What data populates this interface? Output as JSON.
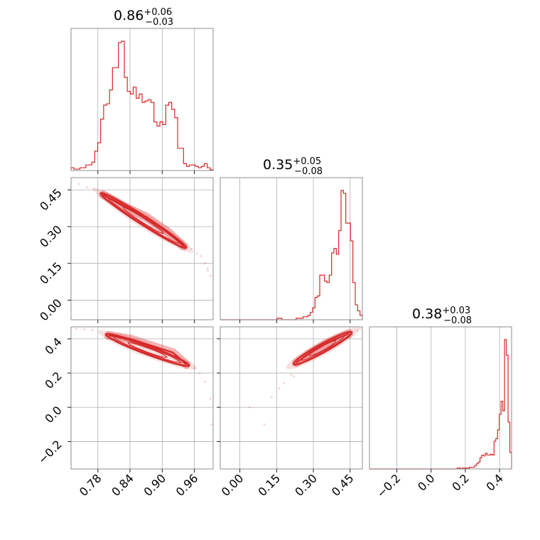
{
  "colors": {
    "series": "#d62728",
    "grid": "#b0b0b0",
    "frame": "#8c8c8c"
  },
  "chart_data": {
    "type": "corner",
    "parameters": [
      {
        "key": "p0",
        "median": "0.86",
        "plus": "+0.06",
        "minus": "−0.03",
        "range": [
          0.73,
          0.995
        ],
        "ticks": [
          0.78,
          0.84,
          0.9,
          0.96
        ],
        "tick_labels": [
          "0.78",
          "0.84",
          "0.90",
          "0.96"
        ]
      },
      {
        "key": "p1",
        "median": "0.35",
        "plus": "+0.05",
        "minus": "−0.08",
        "range": [
          -0.08,
          0.5
        ],
        "ticks": [
          0.0,
          0.15,
          0.3,
          0.45
        ],
        "tick_labels": [
          "0.00",
          "0.15",
          "0.30",
          "0.45"
        ]
      },
      {
        "key": "p2",
        "median": "0.38",
        "plus": "+0.03",
        "minus": "−0.08",
        "range": [
          -0.36,
          0.47
        ],
        "ticks": [
          -0.2,
          0.0,
          0.2,
          0.4
        ],
        "tick_labels": [
          "−0.2",
          "0.0",
          "0.2",
          "0.4"
        ]
      }
    ],
    "histograms": [
      {
        "param": 0,
        "edges_range": [
          0.73,
          0.995
        ],
        "counts": [
          2,
          1,
          1,
          2,
          2,
          4,
          4,
          6,
          14,
          20,
          37,
          47,
          48,
          58,
          74,
          74,
          92,
          93,
          67,
          57,
          55,
          60,
          52,
          55,
          49,
          50,
          51,
          49,
          35,
          32,
          35,
          33,
          47,
          49,
          44,
          38,
          16,
          16,
          5,
          3,
          4,
          4,
          3,
          2,
          3,
          5,
          2,
          0.5
        ]
      },
      {
        "param": 1,
        "edges_range": [
          -0.08,
          0.5
        ],
        "counts": [
          0,
          0,
          0,
          0,
          0,
          0,
          0,
          0,
          0,
          0,
          0,
          0,
          0,
          0,
          0,
          0,
          0,
          0,
          0,
          0,
          0,
          0,
          0,
          0,
          1,
          1,
          0,
          0,
          0,
          0,
          0,
          0,
          1,
          1,
          1,
          2,
          2,
          3,
          5,
          8,
          15,
          16,
          30,
          30,
          26,
          25,
          30,
          45,
          48,
          44,
          60,
          87,
          85,
          65,
          65,
          53,
          25,
          10,
          6,
          3
        ]
      },
      {
        "param": 2,
        "edges_range": [
          -0.36,
          0.47
        ],
        "counts": [
          0,
          0,
          0,
          0,
          0,
          0,
          0,
          0,
          0,
          0,
          0,
          0,
          0,
          0,
          0,
          0,
          0,
          0,
          0,
          0,
          0,
          0,
          0,
          0,
          0,
          0,
          0,
          0,
          0,
          0,
          0,
          0,
          0,
          0,
          0,
          0,
          0,
          0,
          0,
          0,
          0,
          0,
          0,
          0,
          0,
          0,
          0,
          0,
          0,
          0,
          1,
          1,
          0,
          1,
          1,
          1,
          1,
          2,
          2,
          2,
          4,
          6,
          8,
          13,
          16,
          15,
          18,
          16,
          16,
          17,
          16,
          32,
          35,
          45,
          63,
          78,
          67,
          149,
          131,
          54,
          19
        ]
      }
    ],
    "pairs": [
      {
        "x_param": 0,
        "y_param": 1,
        "ridge": [
          [
            0.79,
            0.43
          ],
          [
            0.83,
            0.38
          ],
          [
            0.87,
            0.34
          ],
          [
            0.91,
            0.28
          ],
          [
            0.94,
            0.22
          ]
        ],
        "scatter": [
          [
            0.745,
            0.475
          ],
          [
            0.76,
            0.46
          ],
          [
            0.772,
            0.455
          ],
          [
            0.955,
            0.21
          ],
          [
            0.965,
            0.19
          ],
          [
            0.972,
            0.18
          ],
          [
            0.98,
            0.15
          ],
          [
            0.985,
            0.12
          ],
          [
            0.99,
            0.1
          ],
          [
            0.985,
            0.13
          ]
        ]
      },
      {
        "x_param": 0,
        "y_param": 2,
        "ridge": [
          [
            0.8,
            0.42
          ],
          [
            0.84,
            0.4
          ],
          [
            0.88,
            0.36
          ],
          [
            0.92,
            0.32
          ],
          [
            0.945,
            0.25
          ]
        ],
        "scatter": [
          [
            0.74,
            0.46
          ],
          [
            0.755,
            0.455
          ],
          [
            0.77,
            0.45
          ],
          [
            0.96,
            0.23
          ],
          [
            0.97,
            0.2
          ],
          [
            0.98,
            0.15
          ],
          [
            0.99,
            0.05
          ],
          [
            0.992,
            -0.1
          ]
        ]
      },
      {
        "x_param": 1,
        "y_param": 2,
        "ridge": [
          [
            0.23,
            0.26
          ],
          [
            0.29,
            0.32
          ],
          [
            0.35,
            0.37
          ],
          [
            0.41,
            0.41
          ],
          [
            0.445,
            0.43
          ]
        ],
        "scatter": [
          [
            0.04,
            0.0
          ],
          [
            0.1,
            -0.1
          ],
          [
            0.13,
            0.06
          ],
          [
            0.16,
            0.11
          ],
          [
            0.18,
            0.14
          ],
          [
            0.21,
            0.19
          ],
          [
            0.22,
            0.18
          ],
          [
            0.46,
            0.44
          ],
          [
            0.48,
            0.45
          ],
          [
            0.49,
            0.46
          ]
        ]
      }
    ]
  }
}
